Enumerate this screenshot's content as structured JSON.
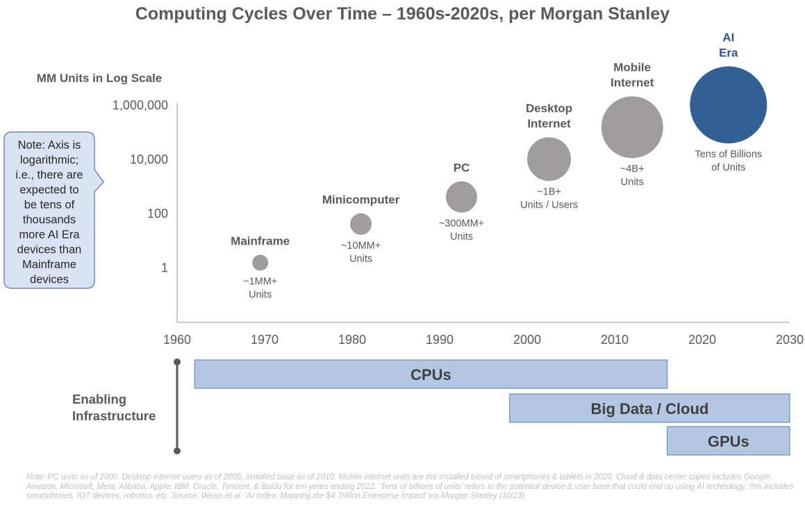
{
  "title": "Computing Cycles Over Time – 1960s-2020s, per Morgan Stanley",
  "note_callout": [
    "Note: Axis is",
    "logarithmic;",
    "i.e., there are",
    "expected to",
    "be tens of",
    "thousands",
    "more AI Era",
    "devices than",
    "Mainframe",
    "devices"
  ],
  "footnote": "Note: PC units as of 2000. Desktop internet users as of 2005, installed base as of 2010. Mobile internet units are the installed based of smartphones & tablets in 2020. Cloud & data center capex includes Google, Amazon, Microsoft, Meta, Alibaba, Apple, IBM, Oracle, Tencent, & Baidu for ten years ending 2022. ‘Tens of billions of units’ refers to the potential device & user base that could end up using AI technology; this includes smartphones, IOT devices, robotics, etc. Source: Weiss et al. ‘AI Index: Mapping the $4 Trillion Enterprise Impact’ via Morgan Stanley (10/23)",
  "colors": {
    "bubble": "#a29d9d",
    "ai_bubble": "#336094",
    "ai_label": "#2f5597",
    "bar_fill": "#b4c7e2",
    "bar_border": "#5b7fad",
    "callout_fill": "#dae3f3",
    "callout_border": "#6f86b4"
  },
  "chart_data": {
    "type": "scatter",
    "ylabel": "MM Units in Log Scale",
    "y_scale": "log",
    "y_ticks": [
      1,
      100,
      10000,
      1000000
    ],
    "y_tick_labels": [
      "1",
      "100",
      "10,000",
      "1,000,000"
    ],
    "xlim": [
      1960,
      2030
    ],
    "x_ticks": [
      1960,
      1970,
      1980,
      1990,
      2000,
      2010,
      2020,
      2030
    ],
    "points": [
      {
        "name": "Mainframe",
        "x": 1969.5,
        "y": 1.5,
        "size": 1,
        "sublabel": [
          "~1MM+",
          "Units"
        ],
        "color": "#a29d9d"
      },
      {
        "name": "Minicomputer",
        "x": 1981,
        "y": 40,
        "size": 2,
        "sublabel": [
          "~10MM+",
          "Units"
        ],
        "color": "#a29d9d"
      },
      {
        "name": "PC",
        "x": 1992.5,
        "y": 400,
        "size": 3,
        "sublabel": [
          "~300MM+",
          "Units"
        ],
        "color": "#a29d9d"
      },
      {
        "name": "Desktop Internet",
        "x": 2002.5,
        "y": 10000,
        "size": 4,
        "sublabel": [
          "~1B+",
          "Units / Users"
        ],
        "color": "#a29d9d"
      },
      {
        "name": "Mobile Internet",
        "x": 2012,
        "y": 150000,
        "size": 5,
        "sublabel": [
          "~4B+",
          "Units"
        ],
        "color": "#a29d9d"
      },
      {
        "name": "AI Era",
        "x": 2023,
        "y": 1000000,
        "size": 6,
        "sublabel": [
          "Tens of Billions",
          "of Units"
        ],
        "color": "#336094"
      }
    ],
    "infrastructure": {
      "label": "Enabling Infrastructure",
      "bars": [
        {
          "name": "CPUs",
          "start": 1962,
          "end": 2016
        },
        {
          "name": "Big Data / Cloud",
          "start": 1998,
          "end": 2030
        },
        {
          "name": "GPUs",
          "start": 2016,
          "end": 2030
        }
      ]
    }
  }
}
